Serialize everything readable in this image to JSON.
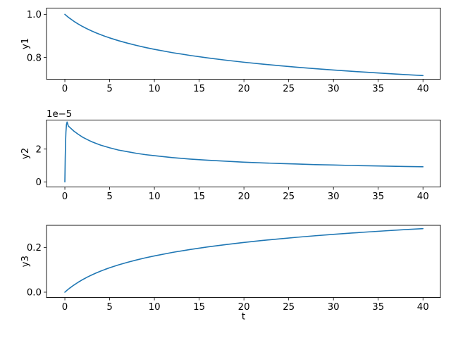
{
  "figure": {
    "background": "#ffffff",
    "line_color": "#1f77b4",
    "spine_color": "#000000",
    "text_color": "#000000"
  },
  "chart_data": [
    {
      "type": "line",
      "title": "",
      "xlabel": "",
      "ylabel": "y1",
      "offset_text": "",
      "grid": false,
      "legend": null,
      "xlim": [
        -2.05,
        41.95
      ],
      "ylim": [
        0.699,
        1.029
      ],
      "xticks": {
        "values": [
          0,
          5,
          10,
          15,
          20,
          25,
          30,
          35,
          40
        ],
        "labels": [
          "0",
          "5",
          "10",
          "15",
          "20",
          "25",
          "30",
          "35",
          "40"
        ]
      },
      "yticks": {
        "values": [
          0.8,
          1.0
        ],
        "labels": [
          "0.8",
          "1.0"
        ]
      },
      "series": [
        {
          "name": "y1",
          "x": [
            0,
            0.25,
            0.5,
            1,
            1.5,
            2,
            2.5,
            3,
            3.5,
            4,
            4.5,
            5,
            6,
            7,
            8,
            9,
            10,
            12,
            14,
            16,
            18,
            20,
            22,
            24,
            26,
            28,
            30,
            32,
            34,
            36,
            38,
            40
          ],
          "y": [
            1.0,
            0.9912,
            0.983,
            0.9681,
            0.955,
            0.9432,
            0.9325,
            0.9228,
            0.9139,
            0.9056,
            0.8979,
            0.8908,
            0.8777,
            0.8662,
            0.8558,
            0.8463,
            0.8377,
            0.8224,
            0.8092,
            0.7975,
            0.7872,
            0.7778,
            0.7693,
            0.7616,
            0.7544,
            0.7478,
            0.7416,
            0.7359,
            0.7305,
            0.7254,
            0.7206,
            0.716
          ]
        }
      ]
    },
    {
      "type": "line",
      "title": "",
      "xlabel": "",
      "ylabel": "y2",
      "offset_text": "1e−5",
      "grid": false,
      "legend": null,
      "xlim": [
        -2.05,
        41.95
      ],
      "ylim": [
        -3.1e-06,
        3.77e-05
      ],
      "xticks": {
        "values": [
          0,
          5,
          10,
          15,
          20,
          25,
          30,
          35,
          40
        ],
        "labels": [
          "0",
          "5",
          "10",
          "15",
          "20",
          "25",
          "30",
          "35",
          "40"
        ]
      },
      "yticks": {
        "values": [
          0,
          2e-05
        ],
        "labels": [
          "0",
          "2"
        ]
      },
      "series": [
        {
          "name": "y2",
          "x": [
            0,
            0.04,
            0.08,
            0.12,
            0.18,
            0.25,
            0.4,
            0.5,
            1,
            1.5,
            2,
            2.5,
            3,
            3.5,
            4,
            4.5,
            5,
            6,
            7,
            8,
            9,
            10,
            12,
            14,
            16,
            18,
            20,
            22,
            24,
            26,
            28,
            30,
            32,
            34,
            36,
            38,
            40
          ],
          "y": [
            0,
            1.4e-05,
            2.45e-05,
            3.05e-05,
            3.5e-05,
            3.65e-05,
            3.39e-05,
            3.35e-05,
            3.1e-05,
            2.9e-05,
            2.72e-05,
            2.58e-05,
            2.45e-05,
            2.34e-05,
            2.24e-05,
            2.16e-05,
            2.08e-05,
            1.94e-05,
            1.84e-05,
            1.74e-05,
            1.66e-05,
            1.6e-05,
            1.48e-05,
            1.39e-05,
            1.32e-05,
            1.26e-05,
            1.2e-05,
            1.16e-05,
            1.12e-05,
            1.09e-05,
            1.05e-05,
            1.03e-05,
            1e-05,
            9.8e-06,
            9.6e-06,
            9.4e-06,
            9.2e-06
          ]
        }
      ]
    },
    {
      "type": "line",
      "title": "",
      "xlabel": "t",
      "ylabel": "y3",
      "offset_text": "",
      "grid": false,
      "legend": null,
      "xlim": [
        -2.05,
        41.95
      ],
      "ylim": [
        -0.0237,
        0.2986
      ],
      "xticks": {
        "values": [
          0,
          5,
          10,
          15,
          20,
          25,
          30,
          35,
          40
        ],
        "labels": [
          "0",
          "5",
          "10",
          "15",
          "20",
          "25",
          "30",
          "35",
          "40"
        ]
      },
      "yticks": {
        "values": [
          0.0,
          0.2
        ],
        "labels": [
          "0.0",
          "0.2"
        ]
      },
      "series": [
        {
          "name": "y3",
          "x": [
            0,
            0.25,
            0.5,
            1,
            1.5,
            2,
            2.5,
            3,
            3.5,
            4,
            4.5,
            5,
            6,
            7,
            8,
            9,
            10,
            12,
            14,
            16,
            18,
            20,
            22,
            24,
            26,
            28,
            30,
            32,
            34,
            36,
            38,
            40
          ],
          "y": [
            0,
            0.0088,
            0.017,
            0.0316,
            0.0447,
            0.0565,
            0.0672,
            0.077,
            0.0859,
            0.0942,
            0.1019,
            0.109,
            0.1221,
            0.1336,
            0.144,
            0.1535,
            0.1621,
            0.1776,
            0.1908,
            0.2025,
            0.2128,
            0.2222,
            0.2307,
            0.2384,
            0.2456,
            0.2522,
            0.2584,
            0.2641,
            0.2695,
            0.2746,
            0.2794,
            0.284
          ]
        }
      ]
    }
  ]
}
